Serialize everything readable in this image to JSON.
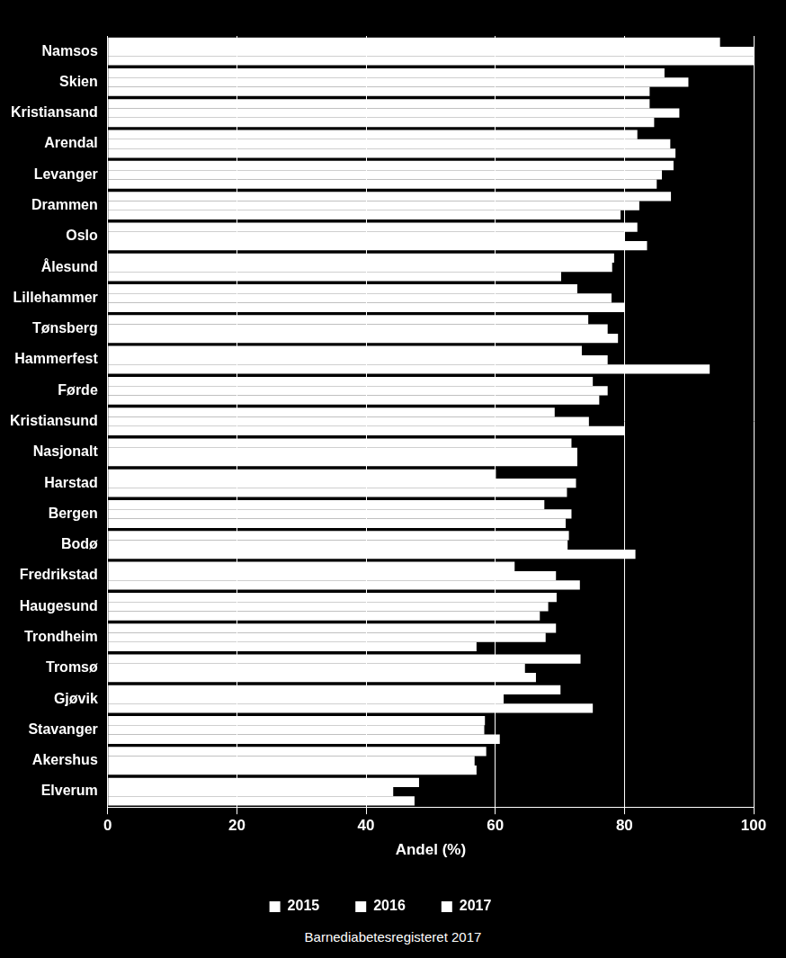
{
  "chart_data": {
    "type": "bar",
    "orientation": "horizontal",
    "x_label": "Andel (%)",
    "annotation": "Barnediabetesregisteret 2017",
    "categories": [
      "Namsos",
      "Skien",
      "Kristiansand",
      "Arendal",
      "Levanger",
      "Drammen",
      "Oslo",
      "Ålesund",
      "Lillehammer",
      "Tønsberg",
      "Hammerfest",
      "Førde",
      "Kristiansund",
      "Nasjonalt",
      "Harstad",
      "Bergen",
      "Bodø",
      "Fredrikstad",
      "Haugesund",
      "Trondheim",
      "Tromsø",
      "Gjøvik",
      "Stavanger",
      "Akershus",
      "Elverum"
    ],
    "series": [
      {
        "name": "2015",
        "color": "#ffffff",
        "values": [
          94.8,
          86.2,
          83.9,
          82.0,
          87.6,
          87.2,
          82.0,
          78.4,
          72.7,
          74.4,
          73.4,
          75.1,
          69.2,
          71.8,
          60.1,
          67.6,
          71.4,
          63.0,
          69.5,
          69.4,
          73.2,
          70.1,
          58.4,
          58.6,
          48.2
        ]
      },
      {
        "name": "2016",
        "color": "#ffffff",
        "values": [
          100,
          89.9,
          88.5,
          87.1,
          85.8,
          82.3,
          80.0,
          78.1,
          78.0,
          77.4,
          77.4,
          77.4,
          74.5,
          72.7,
          72.5,
          71.8,
          71.2,
          69.4,
          68.2,
          67.8,
          64.6,
          61.3,
          58.3,
          56.8,
          44.2
        ]
      },
      {
        "name": "2017",
        "color": "#ffffff",
        "values": [
          100,
          83.9,
          84.6,
          87.9,
          85.0,
          79.4,
          83.5,
          70.2,
          80.0,
          79.0,
          93.2,
          76.1,
          80.0,
          72.7,
          71.1,
          70.9,
          81.7,
          73.1,
          66.9,
          57.1,
          66.3,
          75.1,
          60.7,
          57.1,
          47.5
        ]
      }
    ],
    "xlim": [
      0,
      100
    ],
    "xticks": [
      0,
      20,
      40,
      60,
      80,
      100
    ],
    "grid": true,
    "legend": "bottom"
  }
}
